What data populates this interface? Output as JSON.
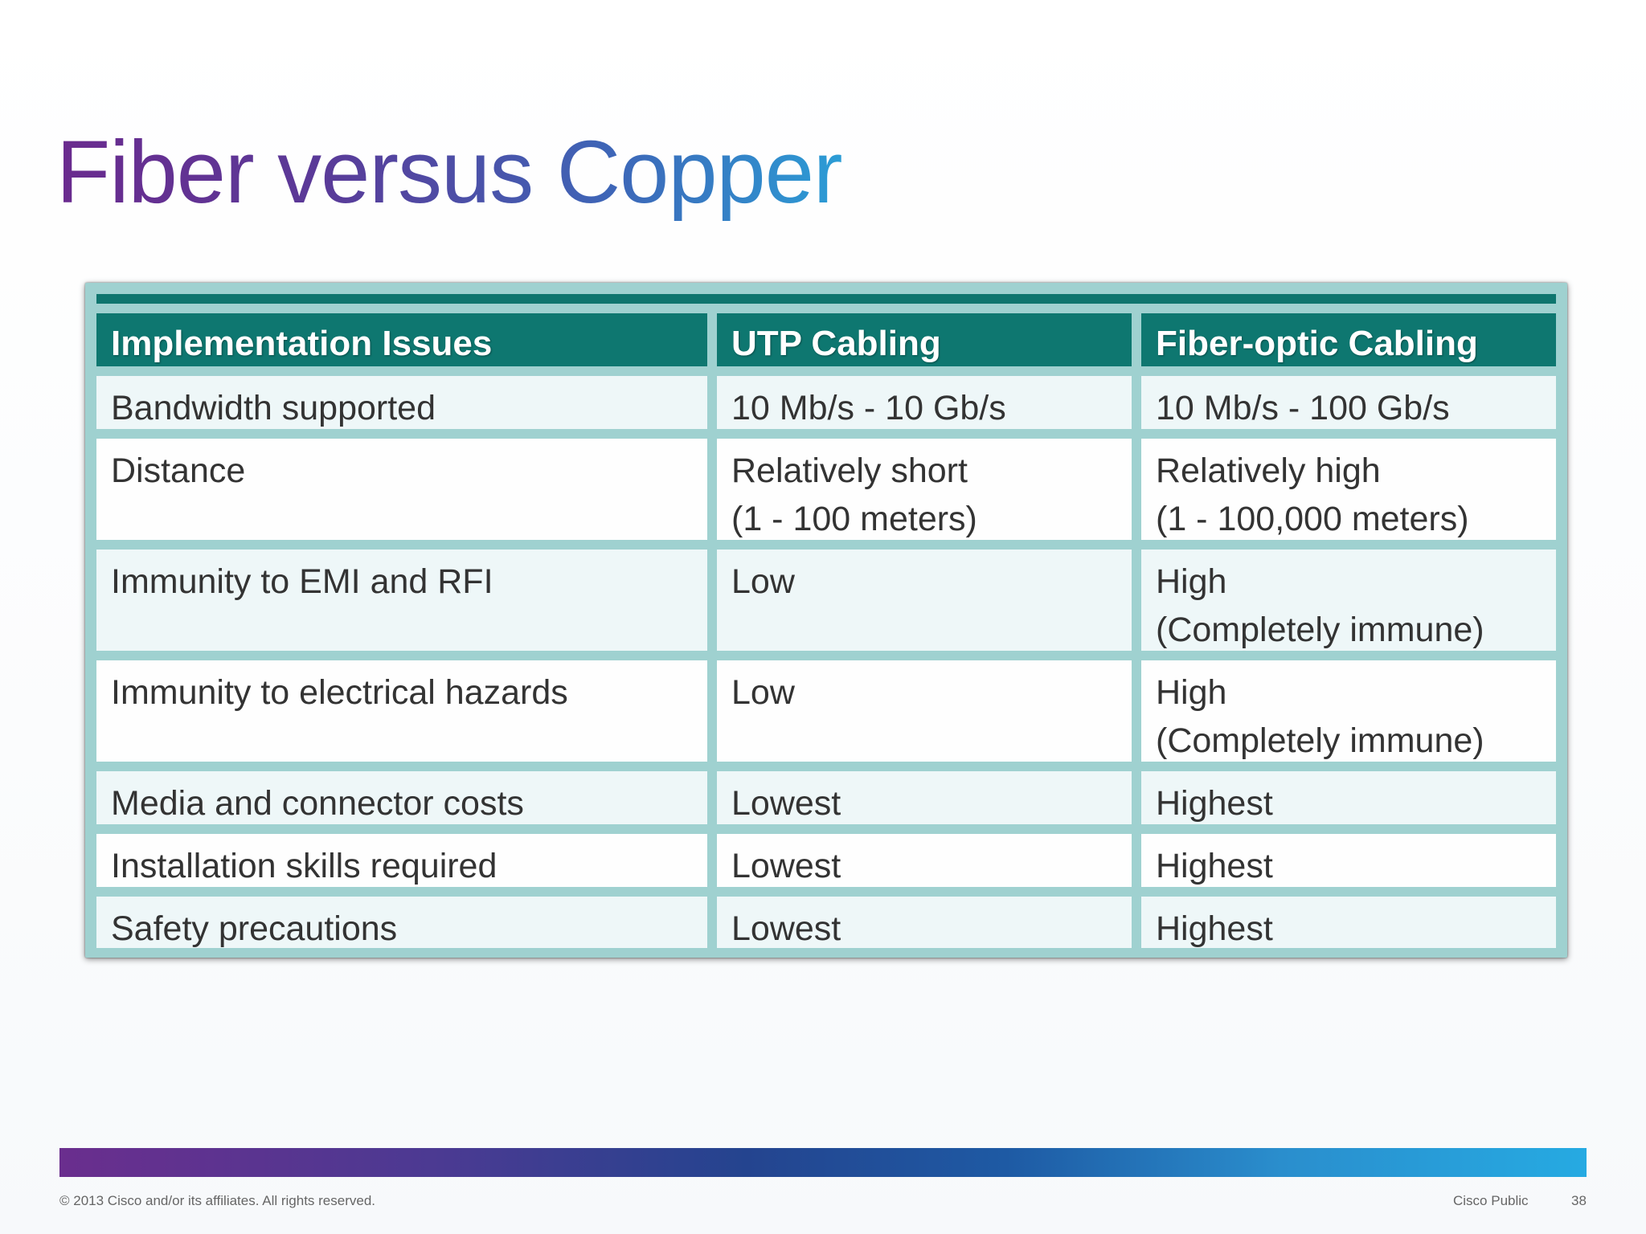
{
  "slide": {
    "title": "Fiber versus Copper"
  },
  "table": {
    "headers": [
      "Implementation Issues",
      "UTP Cabling",
      "Fiber-optic Cabling"
    ],
    "rows": [
      {
        "issue": [
          "Bandwidth supported"
        ],
        "utp": [
          "10 Mb/s - 10 Gb/s"
        ],
        "fiber": [
          "10 Mb/s - 100 Gb/s"
        ]
      },
      {
        "issue": [
          "Distance"
        ],
        "utp": [
          "Relatively short",
          "(1 - 100 meters)"
        ],
        "fiber": [
          "Relatively high",
          "(1 - 100,000 meters)"
        ]
      },
      {
        "issue": [
          "Immunity to EMI and RFI"
        ],
        "utp": [
          "Low"
        ],
        "fiber": [
          "High",
          "(Completely immune)"
        ]
      },
      {
        "issue": [
          "Immunity to electrical hazards"
        ],
        "utp": [
          "Low"
        ],
        "fiber": [
          "High",
          "(Completely immune)"
        ]
      },
      {
        "issue": [
          "Media and connector costs"
        ],
        "utp": [
          "Lowest"
        ],
        "fiber": [
          "Highest"
        ]
      },
      {
        "issue": [
          "Installation skills required"
        ],
        "utp": [
          "Lowest"
        ],
        "fiber": [
          "Highest"
        ]
      },
      {
        "issue": [
          "Safety precautions"
        ],
        "utp": [
          "Lowest"
        ],
        "fiber": [
          "Highest"
        ]
      }
    ]
  },
  "footer": {
    "copyright": "© 2013 Cisco and/or its affiliates. All rights reserved.",
    "classification": "Cisco Public",
    "page_number": "38"
  }
}
